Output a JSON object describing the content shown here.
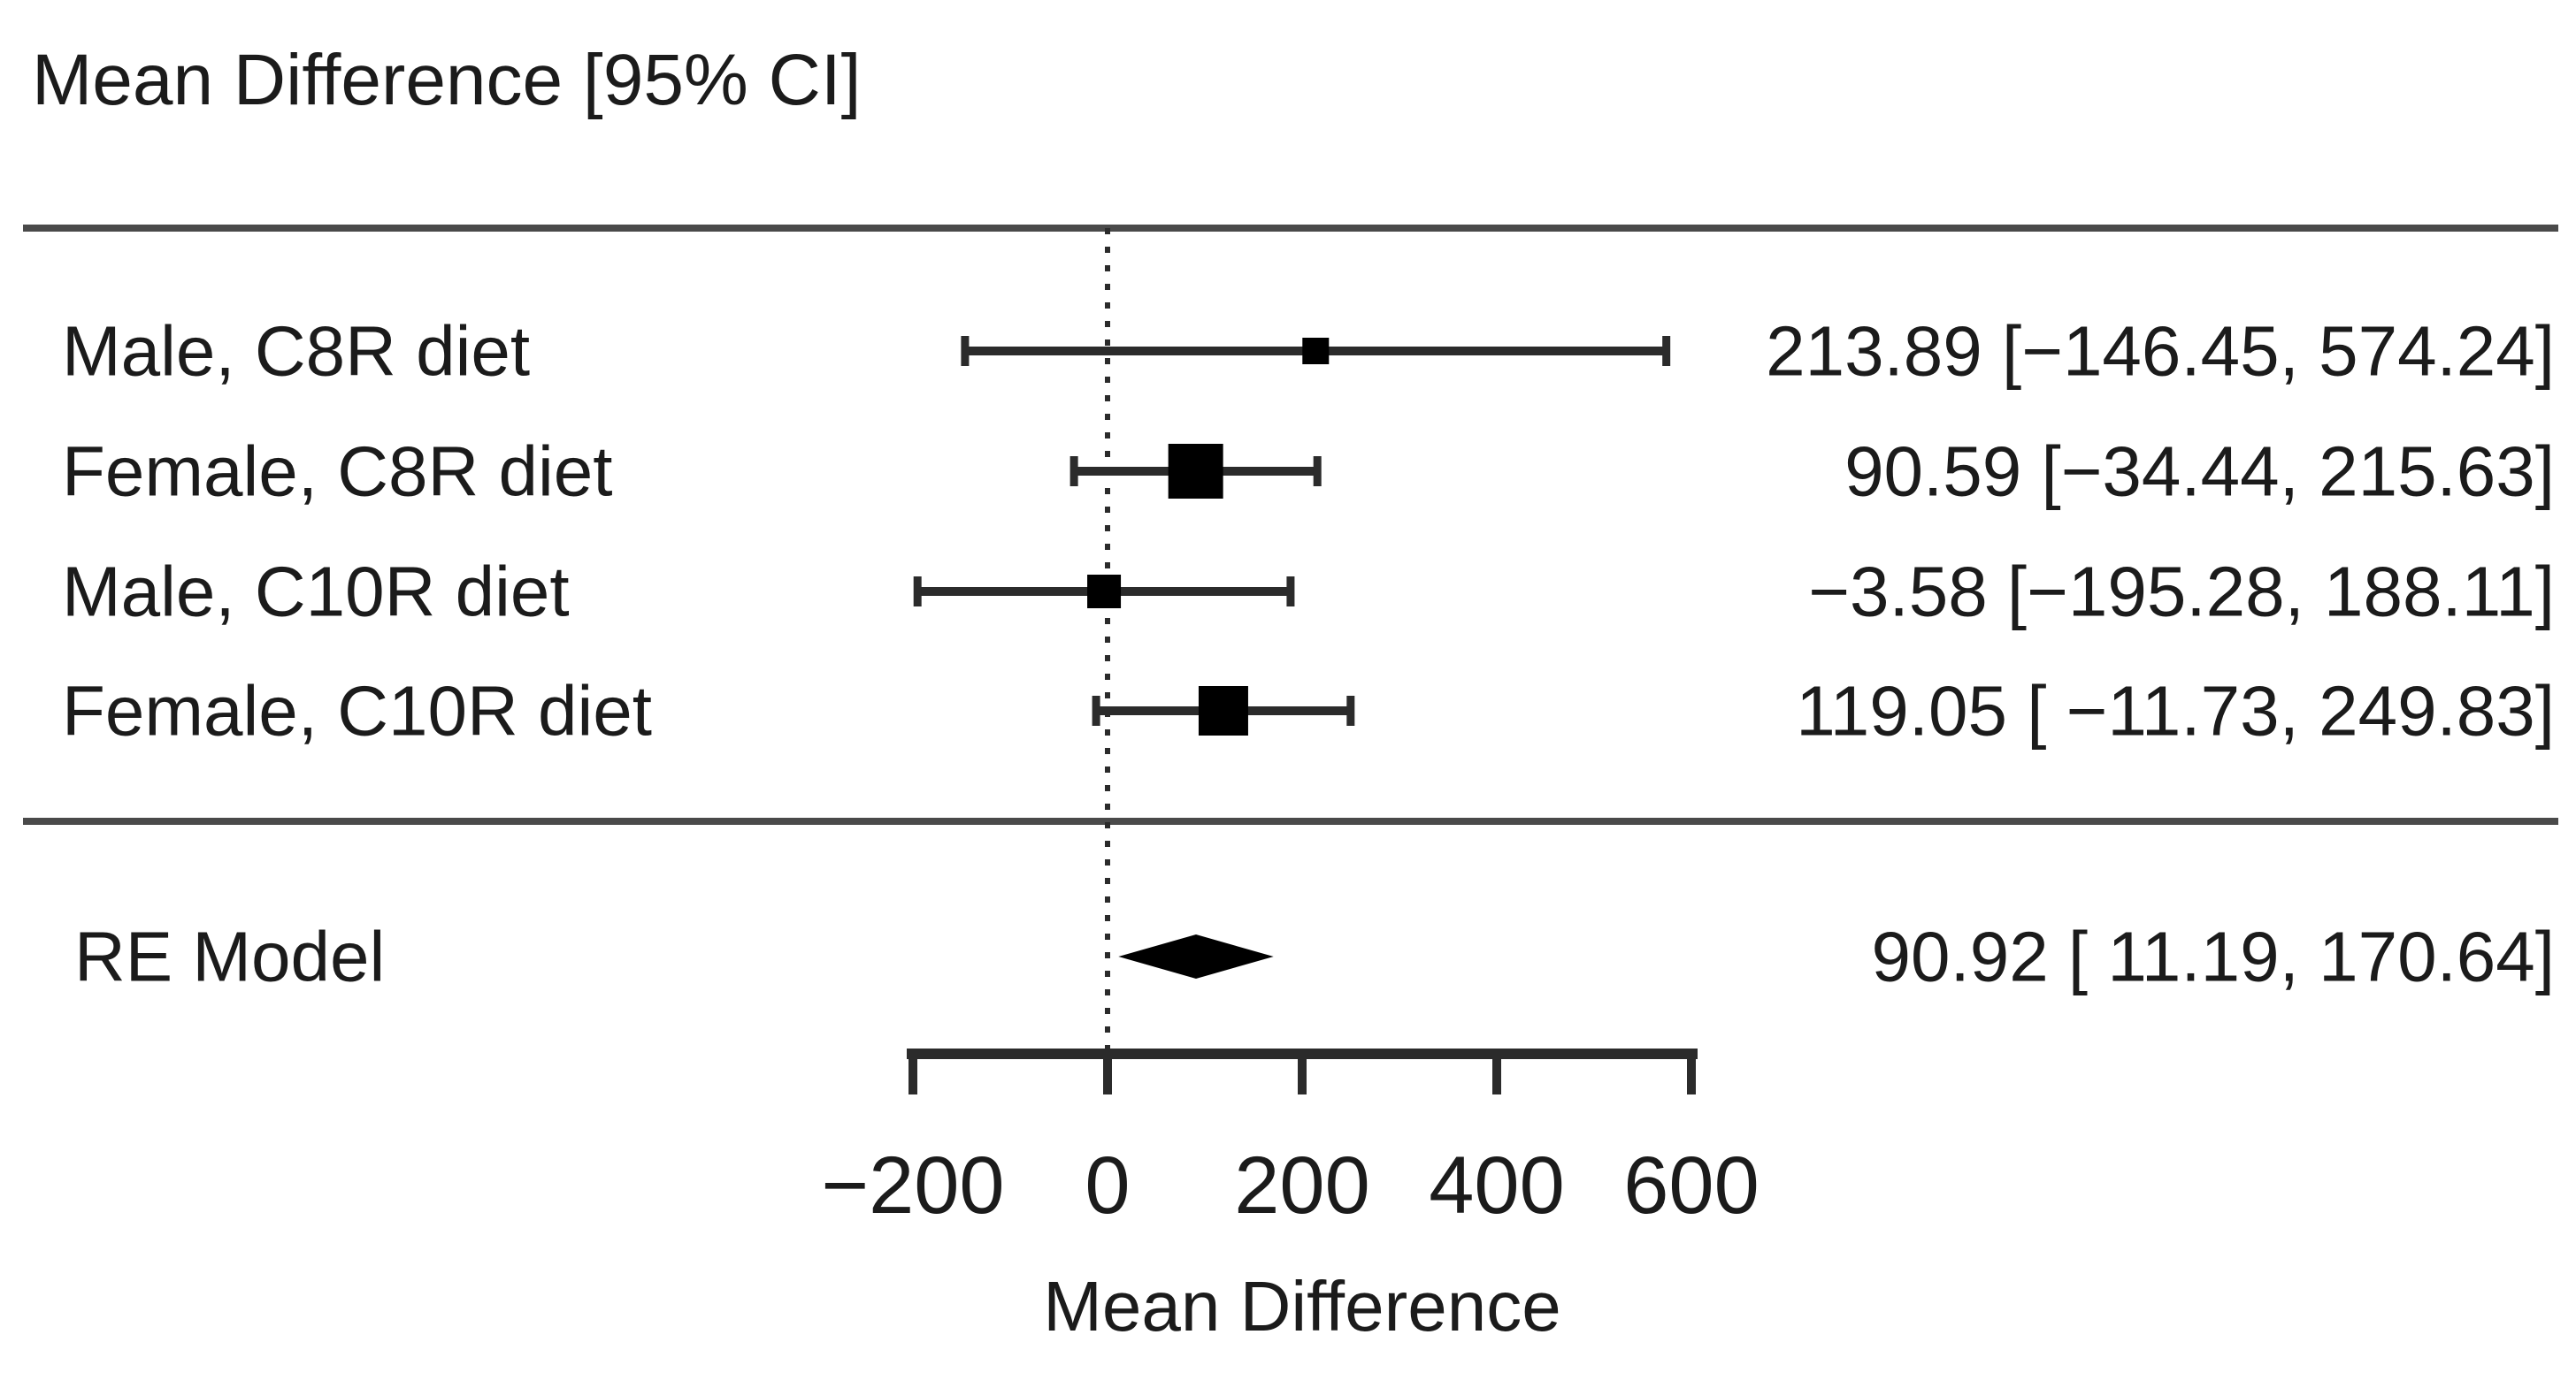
{
  "title": "Mean Difference [95% CI]",
  "chart_data": {
    "type": "forest",
    "title": "Mean Difference [95% CI]",
    "xlabel": "Mean Difference",
    "xlim": [
      -200,
      600
    ],
    "x_ticks": [
      -200,
      0,
      200,
      400,
      600
    ],
    "x_tick_labels": [
      "−200",
      "0",
      "200",
      "400",
      "600"
    ],
    "zero_line": 0,
    "grid": false,
    "legend": "none",
    "studies": [
      {
        "label": "Male, C8R diet",
        "mean": 213.89,
        "ci_low": -146.45,
        "ci_high": 574.24,
        "display": "213.89 [−146.45, 574.24]",
        "marker_size": 30
      },
      {
        "label": "Female, C8R diet",
        "mean": 90.59,
        "ci_low": -34.44,
        "ci_high": 215.63,
        "display": "90.59 [−34.44, 215.63]",
        "marker_size": 62
      },
      {
        "label": "Male, C10R diet",
        "mean": -3.58,
        "ci_low": -195.28,
        "ci_high": 188.11,
        "display": "−3.58 [−195.28, 188.11]",
        "marker_size": 38
      },
      {
        "label": "Female, C10R diet",
        "mean": 119.05,
        "ci_low": -11.73,
        "ci_high": 249.83,
        "display": "119.05 [ −11.73, 249.83]",
        "marker_size": 56
      }
    ],
    "summary": {
      "label": "RE Model",
      "mean": 90.92,
      "ci_low": 11.19,
      "ci_high": 170.64,
      "display": "90.92 [ 11.19, 170.64]"
    },
    "colors": {
      "marker": "#000000",
      "line": "#2b2b2b",
      "separator": "#4a4a4a",
      "text": "#1b1b1b",
      "background": "#ffffff"
    }
  }
}
